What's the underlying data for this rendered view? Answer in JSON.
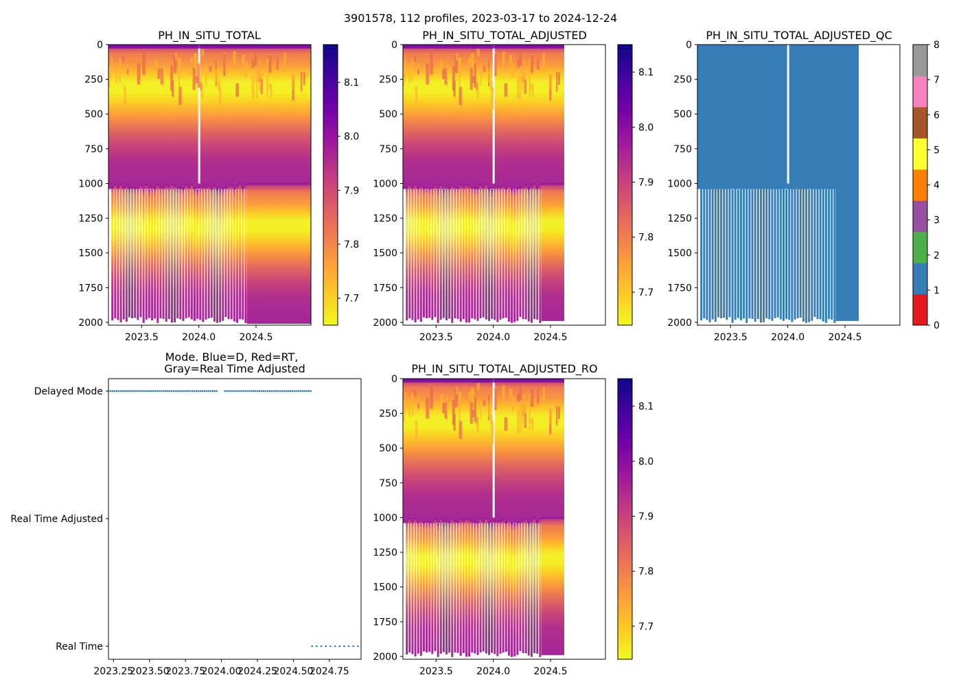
{
  "figure_title": "3901578, 112 profiles, 2023-03-17 to 2024-12-24",
  "colors": {
    "plasma_r": [
      "#f0f921",
      "#fdca26",
      "#fb9f3a",
      "#ed7953",
      "#d8576b",
      "#bd3786",
      "#9c179e",
      "#7201a8",
      "#46039f",
      "#0d0887"
    ],
    "qc": [
      "#e41a1c",
      "#377eb8",
      "#4daf4a",
      "#984ea3",
      "#ff7f00",
      "#ffff33",
      "#a65628",
      "#f781bf",
      "#999999"
    ],
    "mode_marker": "#1f77b4"
  },
  "chart_data": [
    {
      "id": "ph",
      "type": "heatmap",
      "title": "PH_IN_SITU_TOTAL",
      "x_range": [
        2023.21,
        2024.98
      ],
      "x_ticks": [
        "2023.5",
        "2024.0",
        "2024.5"
      ],
      "y_range": [
        0,
        2020
      ],
      "y_ticks": [
        "0",
        "250",
        "500",
        "750",
        "1000",
        "1250",
        "1500",
        "1750",
        "2000"
      ],
      "data_end": 2024.98,
      "colorbar": {
        "min": 7.65,
        "max": 8.17,
        "ticks": [
          "7.7",
          "7.8",
          "7.9",
          "8.0",
          "8.1"
        ]
      }
    },
    {
      "id": "ph_adj",
      "type": "heatmap",
      "title": "PH_IN_SITU_TOTAL_ADJUSTED",
      "x_range": [
        2023.21,
        2024.98
      ],
      "x_ticks": [
        "2023.5",
        "2024.0",
        "2024.5"
      ],
      "y_range": [
        0,
        2020
      ],
      "y_ticks": [
        "0",
        "250",
        "500",
        "750",
        "1000",
        "1250",
        "1500",
        "1750",
        "2000"
      ],
      "data_end": 2024.62,
      "colorbar": {
        "min": 7.64,
        "max": 8.15,
        "ticks": [
          "7.7",
          "7.8",
          "7.9",
          "8.0",
          "8.1"
        ]
      }
    },
    {
      "id": "ph_adj_qc",
      "type": "heatmap",
      "title": "PH_IN_SITU_TOTAL_ADJUSTED_QC",
      "x_range": [
        2023.21,
        2024.98
      ],
      "x_ticks": [
        "2023.5",
        "2024.0",
        "2024.5"
      ],
      "y_range": [
        0,
        2020
      ],
      "y_ticks": [
        "0",
        "250",
        "500",
        "750",
        "1000",
        "1250",
        "1500",
        "1750",
        "2000"
      ],
      "data_end": 2024.62,
      "qc_value": 1,
      "colorbar": {
        "min": 0,
        "max": 8,
        "ticks": [
          "0",
          "1",
          "2",
          "3",
          "4",
          "5",
          "6",
          "7",
          "8"
        ]
      }
    },
    {
      "id": "mode",
      "type": "scatter",
      "title": "Mode. Blue=D, Red=RT,\nGray=Real Time Adjusted",
      "x_range": [
        2023.215,
        2024.97
      ],
      "x_ticks": [
        "2023.25",
        "2023.50",
        "2023.75",
        "2024.00",
        "2024.25",
        "2024.50",
        "2024.75"
      ],
      "y_categories": [
        "Delayed Mode",
        "Real Time Adjusted",
        "Real Time"
      ],
      "series": [
        {
          "name": "Delayed Mode",
          "x_start": 2023.215,
          "x_end": 2024.62,
          "count": 100
        },
        {
          "name": "Real Time",
          "x_start": 2024.63,
          "x_end": 2024.98,
          "count": 12
        }
      ]
    },
    {
      "id": "ph_adj_ro",
      "type": "heatmap",
      "title": "PH_IN_SITU_TOTAL_ADJUSTED_RO",
      "x_range": [
        2023.21,
        2024.98
      ],
      "x_ticks": [
        "2023.5",
        "2024.0",
        "2024.5"
      ],
      "y_range": [
        0,
        2020
      ],
      "y_ticks": [
        "0",
        "250",
        "500",
        "750",
        "1000",
        "1250",
        "1500",
        "1750",
        "2000"
      ],
      "data_end": 2024.62,
      "colorbar": {
        "min": 7.64,
        "max": 8.15,
        "ticks": [
          "7.7",
          "7.8",
          "7.9",
          "8.0",
          "8.1"
        ]
      }
    }
  ]
}
